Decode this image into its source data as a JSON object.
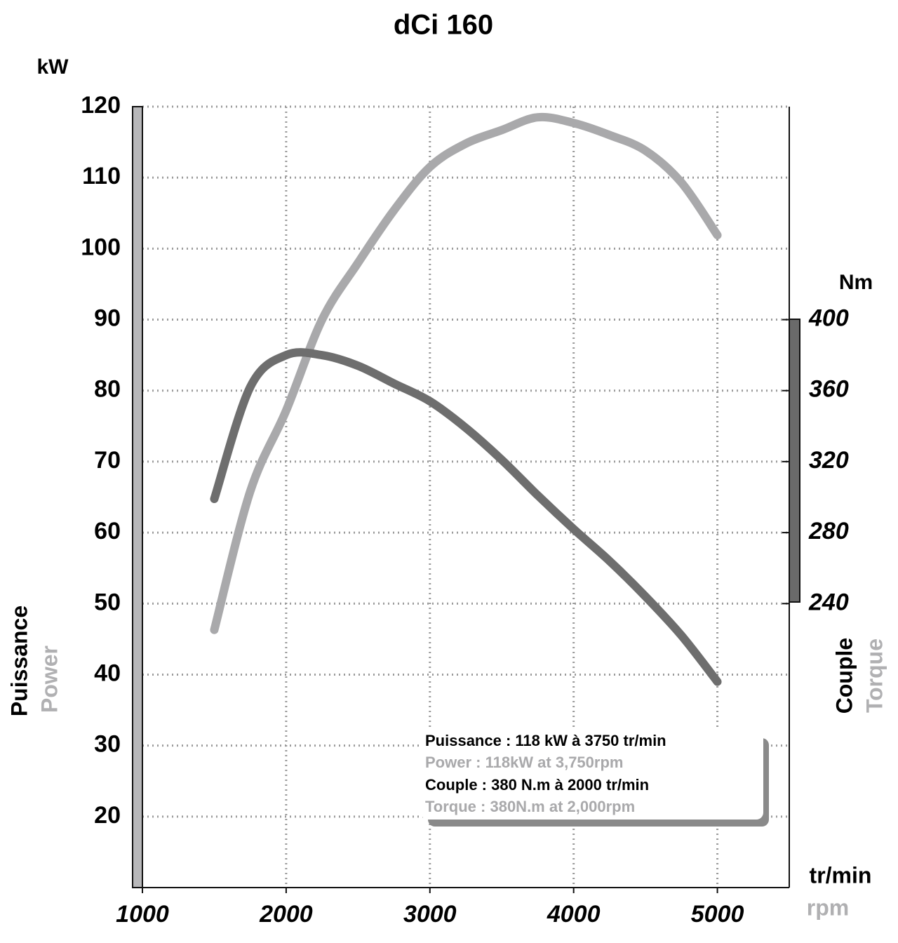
{
  "chart_data": {
    "type": "line",
    "title": "dCi 160",
    "ylabel": "kW",
    "y2label": "Nm",
    "xlabel": "tr/min",
    "xlabel_en": "rpm",
    "x": [
      1500,
      1750,
      2000,
      2250,
      2500,
      2750,
      3000,
      3250,
      3500,
      3750,
      4000,
      4250,
      4500,
      4750,
      5000
    ],
    "series": [
      {
        "name": "Puissance",
        "name_en": "Power",
        "color": "#a9a9ab",
        "axis": "y",
        "values": [
          46.3,
          65.8,
          77.2,
          90,
          98,
          105.4,
          111.5,
          114.8,
          116.7,
          118.5,
          117.7,
          116,
          113.8,
          109.3,
          101.9
        ]
      },
      {
        "name": "Couple",
        "name_en": "Torque",
        "color": "#6e6e6e",
        "axis": "y2",
        "values": [
          299,
          362,
          380,
          380,
          374,
          364,
          354,
          339,
          321,
          301,
          282,
          264,
          244,
          222,
          196
        ]
      }
    ],
    "xlim": [
      1000,
      5500
    ],
    "xticks": [
      1000,
      2000,
      3000,
      4000,
      5000
    ],
    "ylim": [
      10,
      120
    ],
    "yticks": [
      20,
      30,
      40,
      50,
      60,
      70,
      80,
      90,
      100,
      110,
      120
    ],
    "y2lim": [
      80,
      520
    ],
    "y2ticks": [
      240,
      280,
      320,
      360,
      400
    ],
    "grid": true,
    "annotations": [
      "Puissance : 118 kW à 3750 tr/min",
      "Power : 118kW at 3,750rpm",
      "Couple : 380 N.m à 2000 tr/min",
      "Torque : 380N.m at 2,000rpm"
    ]
  }
}
